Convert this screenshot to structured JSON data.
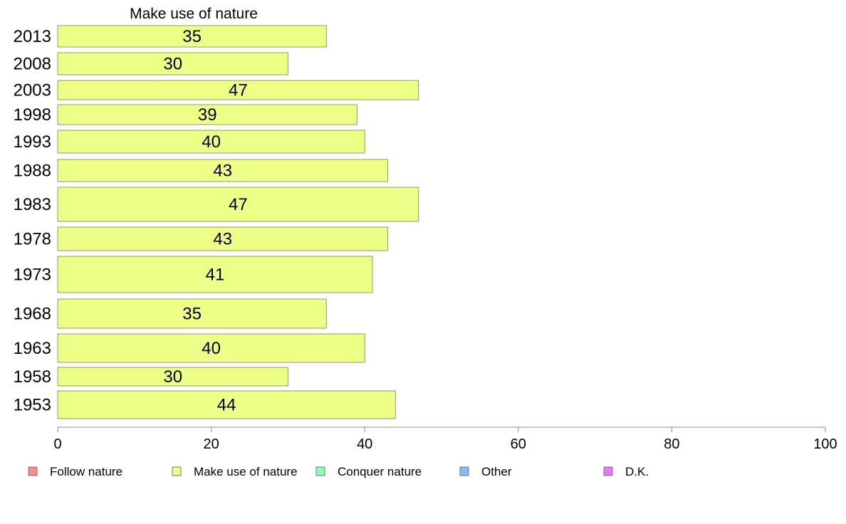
{
  "chart_data": {
    "type": "bar",
    "orientation": "horizontal",
    "title": "Make use of nature",
    "categories": [
      "2013",
      "2008",
      "2003",
      "1998",
      "1993",
      "1988",
      "1983",
      "1978",
      "1973",
      "1968",
      "1963",
      "1958",
      "1953"
    ],
    "series": [
      {
        "name": "Make use of nature",
        "color": "#eeff88",
        "values": [
          35,
          30,
          47,
          39,
          40,
          43,
          47,
          43,
          41,
          35,
          40,
          30,
          44
        ],
        "labels": [
          "35",
          "30",
          "47",
          "39",
          "40",
          "43",
          "47",
          "43",
          "41",
          "35",
          "40",
          "30",
          "44"
        ]
      }
    ],
    "xlim": [
      0,
      100
    ],
    "xticks": [
      0,
      20,
      40,
      60,
      80,
      100
    ],
    "xtick_labels": [
      "0",
      "20",
      "40",
      "60",
      "80",
      "100"
    ],
    "grid": false,
    "legend_position": "bottom",
    "legend": [
      {
        "label": "Follow nature",
        "color": "#ff8a8a"
      },
      {
        "label": "Make use of nature",
        "color": "#eeff88"
      },
      {
        "label": "Conquer nature",
        "color": "#88ffbb"
      },
      {
        "label": "Other",
        "color": "#88bbff"
      },
      {
        "label": "D.K.",
        "color": "#ee77ff"
      }
    ]
  }
}
